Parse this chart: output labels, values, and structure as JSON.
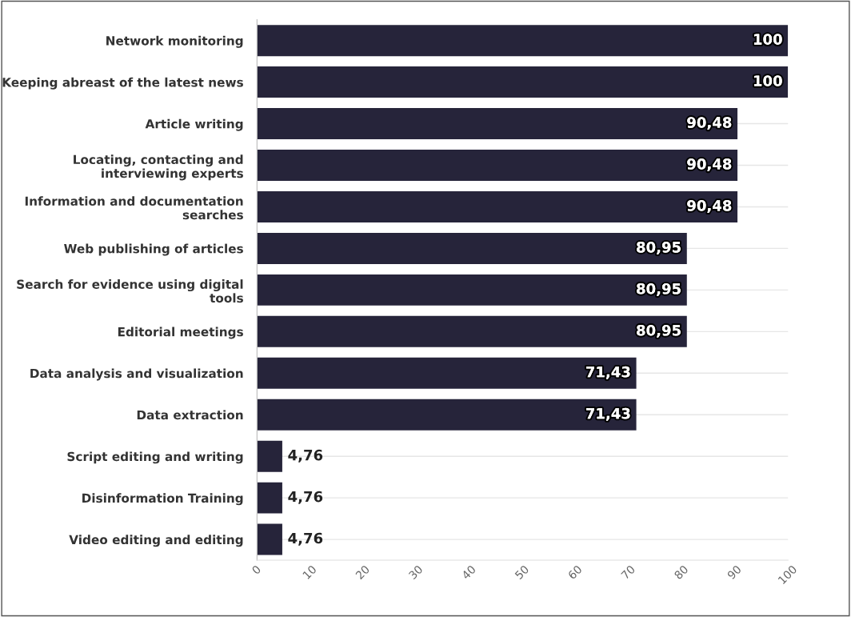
{
  "chart_data": {
    "type": "bar",
    "orientation": "horizontal",
    "categories": [
      "Network monitoring",
      "Keeping abreast of the latest news",
      "Article writing",
      "Locating, contacting and\ninterviewing experts",
      "Information and documentation\nsearches",
      "Web publishing of articles",
      "Search for evidence using digital\ntools",
      "Editorial meetings",
      "Data analysis and visualization",
      "Data extraction",
      "Script editing and writing",
      "Disinformation Training",
      "Video editing and editing"
    ],
    "values": [
      100,
      100,
      90.48,
      90.48,
      90.48,
      80.95,
      80.95,
      80.95,
      71.43,
      71.43,
      4.76,
      4.76,
      4.76
    ],
    "value_labels": [
      "100",
      "100",
      "90,48",
      "90,48",
      "90,48",
      "80,95",
      "80,95",
      "80,95",
      "71,43",
      "71,43",
      "4,76",
      "4,76",
      "4,76"
    ],
    "color": "#26243a",
    "xlim": [
      0,
      100
    ],
    "xticks": [
      0,
      10,
      20,
      30,
      40,
      50,
      60,
      70,
      80,
      90,
      100
    ],
    "grid": "y",
    "legend": false
  }
}
